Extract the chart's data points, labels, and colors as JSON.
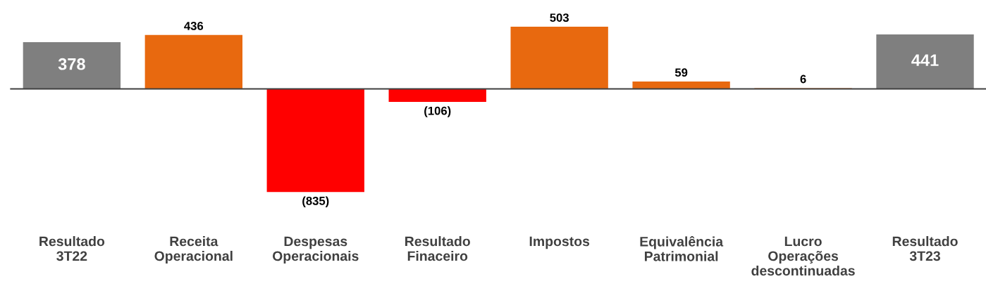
{
  "chart_data": {
    "type": "bar",
    "categories": [
      "Resultado\n3T22",
      "Receita\nOperacional",
      "Despesas\nOperacionais",
      "Resultado\nFinaceiro",
      "Impostos",
      "Equivalência\nPatrimonial",
      "Lucro\nOperações\ndescontinuadas",
      "Resultado\n3T23"
    ],
    "values": [
      378,
      436,
      -835,
      -106,
      503,
      59,
      6,
      441
    ],
    "colors": [
      "#7f7f7f",
      "#e8690f",
      "#ff0000",
      "#ff0000",
      "#e8690f",
      "#e8690f",
      "#e8690f",
      "#7f7f7f"
    ],
    "value_labels": [
      "378",
      "436",
      "(835)",
      "(106)",
      "503",
      "59",
      "6",
      "441"
    ],
    "grid": false,
    "legend": false
  }
}
